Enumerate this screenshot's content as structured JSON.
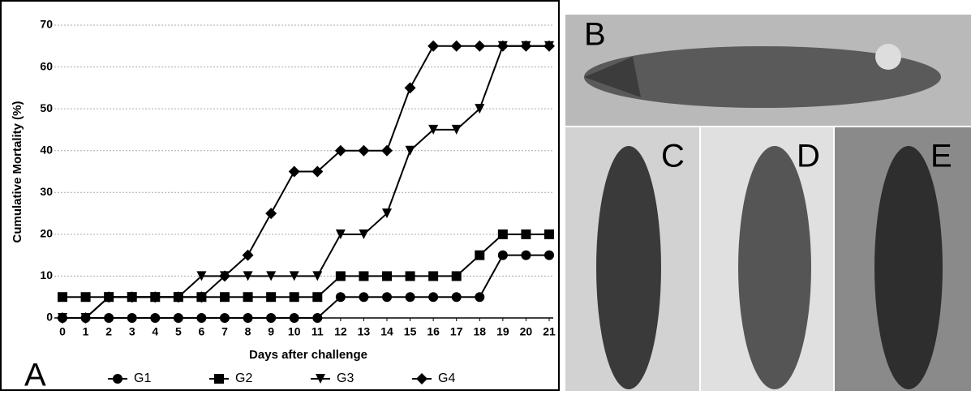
{
  "chart_data": {
    "type": "line",
    "xlabel": "Days after challenge",
    "ylabel": "Cumulative Mortality (%)",
    "x": [
      0,
      1,
      2,
      3,
      4,
      5,
      6,
      7,
      8,
      9,
      10,
      11,
      12,
      13,
      14,
      15,
      16,
      17,
      18,
      19,
      20,
      21
    ],
    "xlim": [
      0,
      21
    ],
    "xticks": [
      0,
      1,
      2,
      3,
      4,
      5,
      6,
      7,
      8,
      9,
      10,
      11,
      12,
      13,
      14,
      15,
      16,
      17,
      18,
      19,
      20,
      21
    ],
    "ylim": [
      0,
      70
    ],
    "yticks": [
      0,
      10,
      20,
      30,
      40,
      50,
      60,
      70
    ],
    "grid": true,
    "series": [
      {
        "name": "G1",
        "color": "#000000",
        "marker": "circle",
        "values": [
          0,
          0,
          0,
          0,
          0,
          0,
          0,
          0,
          0,
          0,
          0,
          0,
          5,
          5,
          5,
          5,
          5,
          5,
          5,
          15,
          15,
          15
        ]
      },
      {
        "name": "G2",
        "color": "#000000",
        "marker": "square",
        "values": [
          5,
          5,
          5,
          5,
          5,
          5,
          5,
          5,
          5,
          5,
          5,
          5,
          10,
          10,
          10,
          10,
          10,
          10,
          15,
          20,
          20,
          20
        ]
      },
      {
        "name": "G3",
        "color": "#000000",
        "marker": "triangle-down",
        "values": [
          0,
          0,
          5,
          5,
          5,
          5,
          10,
          10,
          10,
          10,
          10,
          10,
          20,
          20,
          25,
          40,
          45,
          45,
          50,
          65,
          65,
          65
        ]
      },
      {
        "name": "G4",
        "color": "#000000",
        "marker": "diamond",
        "values": [
          0,
          0,
          5,
          5,
          5,
          5,
          5,
          10,
          15,
          25,
          35,
          35,
          40,
          40,
          40,
          55,
          65,
          65,
          65,
          65,
          65,
          65
        ]
      }
    ]
  },
  "panel_labels": [
    "A",
    "B",
    "C",
    "D",
    "E"
  ]
}
